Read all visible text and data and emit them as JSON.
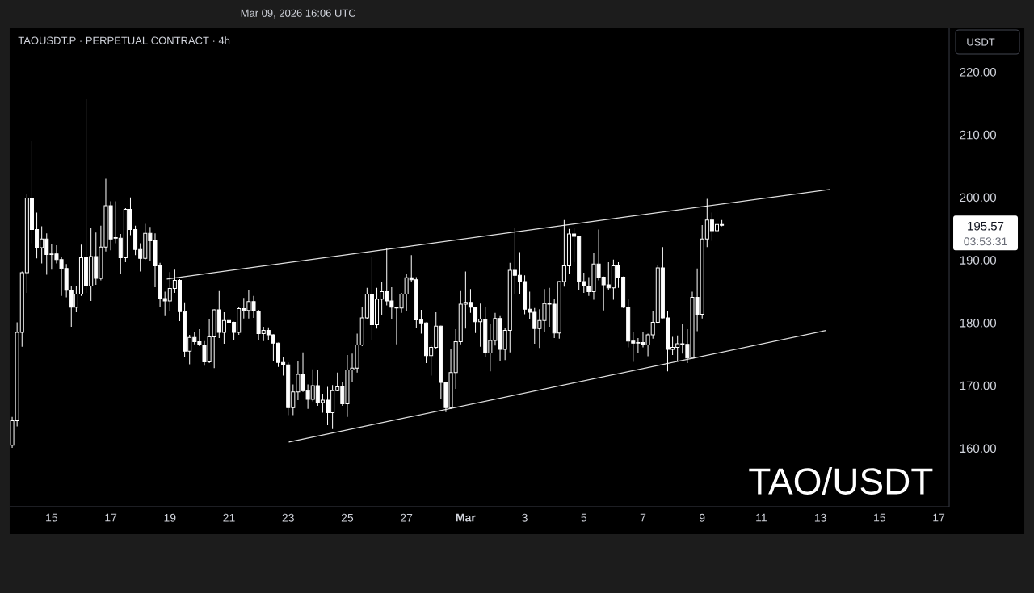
{
  "chart_data": {
    "type": "candlestick",
    "title": "TAOUSDT.P · PERPETUAL CONTRACT · 4h",
    "subtitle": "TAO/USDT",
    "ylabel": "USDT",
    "color": "#ffffff",
    "x": [
      "2026-02-13T16:00",
      "2026-02-13T20:00",
      "2026-02-14T00:00",
      "2026-02-14T04:00",
      "2026-02-14T08:00",
      "2026-02-14T12:00",
      "2026-02-14T16:00",
      "2026-02-14T20:00",
      "2026-02-15T00:00",
      "2026-02-15T04:00",
      "2026-02-15T08:00",
      "2026-02-15T12:00",
      "2026-02-15T16:00",
      "2026-02-15T20:00",
      "2026-02-16T00:00",
      "2026-02-16T04:00",
      "2026-02-16T08:00",
      "2026-02-16T12:00",
      "2026-02-16T16:00",
      "2026-02-16T20:00",
      "2026-02-17T00:00",
      "2026-02-17T04:00",
      "2026-02-17T08:00",
      "2026-02-17T12:00",
      "2026-02-17T16:00",
      "2026-02-17T20:00",
      "2026-02-18T00:00",
      "2026-02-18T04:00",
      "2026-02-18T08:00",
      "2026-02-18T12:00",
      "2026-02-18T16:00",
      "2026-02-18T20:00",
      "2026-02-19T00:00",
      "2026-02-19T04:00",
      "2026-02-19T08:00",
      "2026-02-19T12:00",
      "2026-02-19T16:00",
      "2026-02-19T20:00",
      "2026-02-20T00:00",
      "2026-02-20T04:00",
      "2026-02-20T08:00",
      "2026-02-20T12:00",
      "2026-02-20T16:00",
      "2026-02-20T20:00",
      "2026-02-21T00:00",
      "2026-02-21T04:00",
      "2026-02-21T08:00",
      "2026-02-21T12:00",
      "2026-02-21T16:00",
      "2026-02-21T20:00",
      "2026-02-22T00:00",
      "2026-02-22T04:00",
      "2026-02-22T08:00",
      "2026-02-22T12:00",
      "2026-02-22T16:00",
      "2026-02-22T20:00",
      "2026-02-23T00:00",
      "2026-02-23T04:00",
      "2026-02-23T08:00",
      "2026-02-23T12:00",
      "2026-02-23T16:00",
      "2026-02-23T20:00",
      "2026-02-24T00:00",
      "2026-02-24T04:00",
      "2026-02-24T08:00",
      "2026-02-24T12:00",
      "2026-02-24T16:00",
      "2026-02-24T20:00",
      "2026-02-25T00:00",
      "2026-02-25T04:00",
      "2026-02-25T08:00",
      "2026-02-25T12:00",
      "2026-02-25T16:00",
      "2026-02-25T20:00",
      "2026-02-26T00:00",
      "2026-02-26T04:00",
      "2026-02-26T08:00",
      "2026-02-26T12:00",
      "2026-02-26T16:00",
      "2026-02-26T20:00",
      "2026-02-27T00:00",
      "2026-02-27T04:00",
      "2026-02-27T08:00",
      "2026-02-27T12:00",
      "2026-02-27T16:00",
      "2026-02-27T20:00",
      "2026-02-28T00:00",
      "2026-02-28T04:00",
      "2026-02-28T08:00",
      "2026-02-28T12:00",
      "2026-02-28T16:00",
      "2026-02-28T20:00",
      "2026-03-01T00:00",
      "2026-03-01T04:00",
      "2026-03-01T08:00",
      "2026-03-01T12:00",
      "2026-03-01T16:00",
      "2026-03-01T20:00",
      "2026-03-02T00:00",
      "2026-03-02T04:00",
      "2026-03-02T08:00",
      "2026-03-02T12:00",
      "2026-03-02T16:00",
      "2026-03-02T20:00",
      "2026-03-03T00:00",
      "2026-03-03T04:00",
      "2026-03-03T08:00",
      "2026-03-03T12:00",
      "2026-03-03T16:00",
      "2026-03-03T20:00",
      "2026-03-04T00:00",
      "2026-03-04T04:00",
      "2026-03-04T08:00",
      "2026-03-04T12:00",
      "2026-03-04T16:00",
      "2026-03-04T20:00",
      "2026-03-05T00:00",
      "2026-03-05T04:00",
      "2026-03-05T08:00",
      "2026-03-05T12:00",
      "2026-03-05T16:00",
      "2026-03-05T20:00",
      "2026-03-06T00:00",
      "2026-03-06T04:00",
      "2026-03-06T08:00",
      "2026-03-06T12:00",
      "2026-03-06T16:00",
      "2026-03-06T20:00",
      "2026-03-07T00:00",
      "2026-03-07T04:00",
      "2026-03-07T08:00",
      "2026-03-07T12:00",
      "2026-03-07T16:00",
      "2026-03-07T20:00",
      "2026-03-08T00:00",
      "2026-03-08T04:00",
      "2026-03-08T08:00",
      "2026-03-08T12:00",
      "2026-03-08T16:00",
      "2026-03-08T20:00",
      "2026-03-09T00:00",
      "2026-03-09T04:00",
      "2026-03-09T08:00",
      "2026-03-09T12:00",
      "2026-03-09T16:00"
    ],
    "ohlc": [
      [
        160.5,
        165.0,
        160.1,
        164.4
      ],
      [
        164.4,
        180.1,
        163.5,
        178.5
      ],
      [
        178.5,
        188.2,
        176.2,
        188.0
      ],
      [
        188.0,
        200.5,
        184.8,
        199.9
      ],
      [
        199.8,
        209.0,
        192.7,
        194.9
      ],
      [
        194.9,
        197.6,
        190.3,
        192.0
      ],
      [
        192.0,
        195.4,
        189.5,
        193.4
      ],
      [
        193.4,
        194.3,
        187.7,
        190.9
      ],
      [
        190.9,
        192.6,
        188.5,
        191.0
      ],
      [
        191.0,
        192.4,
        189.5,
        190.1
      ],
      [
        190.1,
        190.6,
        184.3,
        188.7
      ],
      [
        188.7,
        189.4,
        184.1,
        185.2
      ],
      [
        185.2,
        185.9,
        179.4,
        182.5
      ],
      [
        182.5,
        185.9,
        181.7,
        184.6
      ],
      [
        184.6,
        192.5,
        184.3,
        190.4
      ],
      [
        190.4,
        215.7,
        184.8,
        185.9
      ],
      [
        185.9,
        195.2,
        183.5,
        190.6
      ],
      [
        190.6,
        194.4,
        186.1,
        187.1
      ],
      [
        187.1,
        195.5,
        186.8,
        192.1
      ],
      [
        192.1,
        203.0,
        191.4,
        198.7
      ],
      [
        198.7,
        199.4,
        191.6,
        193.4
      ],
      [
        193.6,
        199.4,
        192.7,
        193.5
      ],
      [
        193.5,
        194.2,
        187.8,
        190.4
      ],
      [
        190.4,
        198.3,
        189.7,
        198.1
      ],
      [
        198.1,
        200.0,
        194.0,
        194.9
      ],
      [
        194.9,
        195.5,
        190.8,
        191.7
      ],
      [
        191.7,
        192.7,
        188.2,
        190.3
      ],
      [
        190.3,
        195.8,
        190.1,
        194.3
      ],
      [
        194.3,
        195.3,
        189.9,
        193.1
      ],
      [
        193.1,
        194.3,
        185.7,
        189.1
      ],
      [
        189.1,
        189.6,
        182.5,
        183.9
      ],
      [
        183.9,
        185.0,
        181.1,
        183.5
      ],
      [
        183.5,
        188.1,
        181.9,
        185.5
      ],
      [
        185.5,
        188.5,
        184.8,
        186.8
      ],
      [
        186.8,
        187.0,
        180.3,
        181.8
      ],
      [
        181.8,
        183.3,
        174.5,
        175.5
      ],
      [
        175.5,
        178.1,
        173.4,
        177.7
      ],
      [
        177.7,
        178.5,
        176.6,
        177.0
      ],
      [
        177.0,
        179.0,
        176.3,
        176.5
      ],
      [
        176.5,
        177.1,
        173.2,
        173.8
      ],
      [
        173.8,
        180.6,
        173.6,
        177.8
      ],
      [
        177.8,
        182.2,
        172.8,
        182.1
      ],
      [
        182.1,
        185.1,
        177.6,
        178.5
      ],
      [
        178.5,
        181.7,
        176.7,
        180.4
      ],
      [
        180.4,
        181.3,
        179.5,
        180.1
      ],
      [
        180.1,
        180.2,
        177.3,
        178.5
      ],
      [
        178.5,
        182.5,
        178.1,
        182.3
      ],
      [
        182.3,
        184.0,
        180.7,
        182.0
      ],
      [
        182.0,
        185.2,
        180.7,
        183.4
      ],
      [
        183.4,
        184.3,
        180.8,
        181.9
      ],
      [
        181.9,
        182.1,
        177.3,
        178.3
      ],
      [
        178.3,
        179.4,
        177.1,
        178.8
      ],
      [
        178.8,
        179.3,
        177.3,
        178.1
      ],
      [
        178.1,
        178.2,
        174.0,
        176.8
      ],
      [
        176.8,
        176.9,
        173.0,
        173.7
      ],
      [
        173.7,
        174.6,
        171.6,
        173.3
      ],
      [
        173.3,
        173.7,
        165.3,
        166.5
      ],
      [
        166.5,
        170.2,
        165.3,
        169.0
      ],
      [
        169.0,
        174.0,
        167.7,
        171.8
      ],
      [
        171.8,
        175.3,
        169.0,
        169.2
      ],
      [
        169.2,
        170.2,
        166.3,
        167.8
      ],
      [
        167.8,
        172.6,
        167.5,
        170.0
      ],
      [
        170.0,
        172.5,
        166.8,
        167.3
      ],
      [
        167.3,
        168.7,
        165.7,
        167.7
      ],
      [
        167.7,
        169.8,
        163.7,
        165.7
      ],
      [
        165.7,
        170.1,
        163.1,
        169.2
      ],
      [
        169.2,
        172.1,
        169.1,
        169.8
      ],
      [
        169.8,
        170.5,
        166.8,
        167.1
      ],
      [
        167.1,
        174.9,
        165.0,
        172.5
      ],
      [
        172.5,
        175.1,
        170.6,
        172.8
      ],
      [
        172.8,
        178.3,
        172.1,
        176.5
      ],
      [
        176.5,
        182.5,
        176.3,
        180.8
      ],
      [
        180.8,
        185.6,
        180.6,
        184.6
      ],
      [
        184.6,
        190.6,
        177.3,
        179.7
      ],
      [
        179.7,
        185.6,
        179.1,
        183.8
      ],
      [
        183.8,
        186.5,
        181.3,
        185.0
      ],
      [
        185.0,
        192.0,
        182.8,
        183.5
      ],
      [
        183.5,
        185.7,
        180.6,
        182.5
      ],
      [
        182.5,
        182.6,
        176.6,
        182.4
      ],
      [
        182.4,
        184.8,
        181.6,
        184.6
      ],
      [
        184.6,
        187.9,
        181.9,
        187.2
      ],
      [
        187.2,
        190.8,
        186.5,
        186.9
      ],
      [
        186.9,
        187.3,
        179.2,
        180.5
      ],
      [
        180.5,
        182.1,
        178.3,
        180.0
      ],
      [
        180.0,
        180.1,
        173.6,
        174.8
      ],
      [
        174.8,
        176.4,
        171.6,
        176.1
      ],
      [
        176.1,
        181.7,
        175.8,
        179.5
      ],
      [
        179.5,
        179.6,
        167.8,
        170.5
      ],
      [
        170.5,
        170.6,
        165.8,
        166.5
      ],
      [
        166.5,
        175.8,
        166.3,
        172.1
      ],
      [
        172.1,
        179.0,
        169.5,
        177.0
      ],
      [
        177.0,
        185.1,
        176.6,
        183.0
      ],
      [
        183.0,
        188.2,
        179.1,
        183.3
      ],
      [
        183.3,
        185.4,
        181.6,
        182.5
      ],
      [
        182.5,
        182.6,
        178.4,
        180.2
      ],
      [
        180.2,
        183.1,
        176.2,
        180.6
      ],
      [
        180.6,
        182.6,
        174.5,
        175.2
      ],
      [
        175.2,
        179.8,
        172.3,
        177.2
      ],
      [
        177.2,
        181.6,
        176.4,
        180.7
      ],
      [
        180.7,
        181.1,
        174.0,
        175.8
      ],
      [
        175.8,
        179.2,
        174.1,
        178.8
      ],
      [
        178.8,
        189.6,
        175.3,
        188.4
      ],
      [
        188.4,
        195.1,
        184.6,
        187.6
      ],
      [
        187.6,
        191.3,
        184.6,
        186.6
      ],
      [
        186.6,
        187.6,
        181.4,
        182.2
      ],
      [
        182.2,
        185.0,
        180.6,
        181.7
      ],
      [
        181.7,
        182.4,
        176.7,
        179.1
      ],
      [
        179.1,
        182.2,
        176.0,
        180.4
      ],
      [
        180.4,
        185.4,
        178.5,
        183.1
      ],
      [
        183.1,
        185.6,
        179.4,
        183.0
      ],
      [
        183.0,
        183.8,
        177.6,
        178.4
      ],
      [
        178.4,
        186.7,
        177.5,
        186.6
      ],
      [
        186.6,
        196.4,
        185.8,
        189.1
      ],
      [
        189.1,
        195.0,
        187.8,
        194.2
      ],
      [
        194.2,
        195.2,
        189.7,
        193.8
      ],
      [
        193.8,
        193.9,
        185.2,
        186.6
      ],
      [
        186.6,
        188.0,
        184.8,
        185.9
      ],
      [
        185.9,
        187.3,
        184.3,
        185.0
      ],
      [
        185.0,
        191.2,
        183.7,
        189.4
      ],
      [
        189.4,
        194.9,
        186.8,
        187.3
      ],
      [
        187.3,
        187.4,
        182.0,
        186.1
      ],
      [
        186.1,
        189.7,
        185.3,
        185.6
      ],
      [
        185.6,
        190.1,
        183.7,
        189.1
      ],
      [
        189.1,
        189.7,
        185.6,
        187.3
      ],
      [
        187.3,
        187.4,
        182.4,
        182.5
      ],
      [
        182.5,
        183.9,
        176.1,
        177.1
      ],
      [
        177.1,
        178.5,
        173.8,
        176.8
      ],
      [
        176.8,
        177.6,
        175.2,
        176.9
      ],
      [
        176.9,
        178.5,
        176.1,
        176.5
      ],
      [
        176.5,
        178.3,
        174.7,
        178.1
      ],
      [
        178.1,
        181.9,
        177.5,
        180.1
      ],
      [
        180.1,
        189.3,
        180.0,
        188.8
      ],
      [
        188.8,
        192.1,
        180.7,
        180.8
      ],
      [
        180.8,
        181.9,
        172.3,
        175.8
      ],
      [
        175.8,
        177.8,
        174.9,
        176.1
      ],
      [
        176.1,
        178.0,
        174.0,
        176.7
      ],
      [
        176.7,
        179.8,
        175.1,
        176.6
      ],
      [
        176.6,
        179.0,
        173.6,
        174.4
      ],
      [
        174.4,
        185.0,
        174.3,
        184.1
      ],
      [
        184.1,
        188.7,
        178.7,
        181.4
      ],
      [
        181.4,
        195.6,
        180.7,
        193.4
      ],
      [
        193.4,
        199.8,
        192.1,
        196.4
      ],
      [
        196.4,
        197.6,
        193.1,
        194.7
      ],
      [
        194.7,
        198.5,
        193.4,
        195.7
      ],
      [
        195.7,
        196.4,
        195.4,
        195.57
      ]
    ],
    "series": [
      {
        "type": "line",
        "color": "#e0e0e0",
        "x": [
          "2026-02-18T21:30",
          "2026-03-13T08:00"
        ],
        "values": [
          187.0,
          201.3
        ]
      },
      {
        "type": "line",
        "color": "#e0e0e0",
        "x": [
          "2026-02-23T00:30",
          "2026-03-13T04:30"
        ],
        "values": [
          161.0,
          178.8
        ]
      }
    ],
    "xlim": [
      "2026-02-13T14:00",
      "2026-03-17T08:30"
    ],
    "xticks": [
      {
        "value": "2026-02-15",
        "label": "15"
      },
      {
        "value": "2026-02-17",
        "label": "17"
      },
      {
        "value": "2026-02-19",
        "label": "19"
      },
      {
        "value": "2026-02-21",
        "label": "21"
      },
      {
        "value": "2026-02-23",
        "label": "23"
      },
      {
        "value": "2026-02-25",
        "label": "25"
      },
      {
        "value": "2026-02-27",
        "label": "27"
      },
      {
        "value": "2026-03-01",
        "label": "Mar"
      },
      {
        "value": "2026-03-03",
        "label": "3"
      },
      {
        "value": "2026-03-05",
        "label": "5"
      },
      {
        "value": "2026-03-07",
        "label": "7"
      },
      {
        "value": "2026-03-09",
        "label": "9"
      },
      {
        "value": "2026-03-11",
        "label": "11"
      },
      {
        "value": "2026-03-13",
        "label": "13"
      },
      {
        "value": "2026-03-15",
        "label": "15"
      },
      {
        "value": "2026-03-17",
        "label": "17"
      }
    ],
    "ylim": [
      150.7,
      227.0
    ],
    "yticks": [
      {
        "value": 160,
        "label": "160.00"
      },
      {
        "value": 170,
        "label": "170.00"
      },
      {
        "value": 180,
        "label": "180.00"
      },
      {
        "value": 190,
        "label": "190.00"
      },
      {
        "value": 200,
        "label": "200.00"
      },
      {
        "value": 210,
        "label": "210.00"
      },
      {
        "value": 220,
        "label": "220.00"
      }
    ],
    "annotations": [
      "Mar 09, 2026 16:06 UTC",
      "195.57",
      "03:53:31"
    ]
  }
}
